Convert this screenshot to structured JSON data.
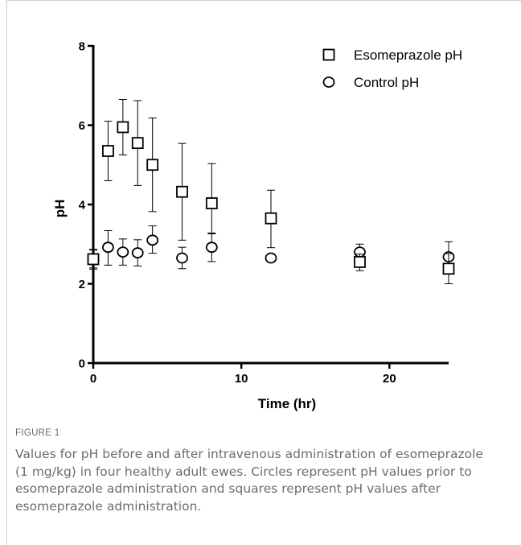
{
  "figure": {
    "label": "FIGURE 1",
    "caption": "Values for pH before and after intravenous administration of esomeprazole (1 mg/kg) in four healthy adult ewes. Circles represent pH values prior to esomeprazole administration and squares represent pH values after esomeprazole administration."
  },
  "chart_data": {
    "type": "scatter",
    "xlabel": "Time (hr)",
    "ylabel": "pH",
    "xlim": [
      0,
      24
    ],
    "ylim": [
      0,
      8
    ],
    "x_ticks": [
      0,
      10,
      20
    ],
    "y_ticks": [
      0,
      2,
      4,
      6,
      8
    ],
    "grid": false,
    "legend_position": "top-right",
    "series": [
      {
        "name": "Esomeprazole pH",
        "marker": "square",
        "points": [
          {
            "x": 0,
            "y": 2.62,
            "err_low": 0.25,
            "err_high": 0.25
          },
          {
            "x": 1,
            "y": 5.35,
            "err_low": 0.75,
            "err_high": 0.75
          },
          {
            "x": 2,
            "y": 5.95,
            "err_low": 0.7,
            "err_high": 0.7
          },
          {
            "x": 3,
            "y": 5.55,
            "err_low": 1.07,
            "err_high": 1.07
          },
          {
            "x": 4,
            "y": 5.0,
            "err_low": 1.18,
            "err_high": 1.18
          },
          {
            "x": 6,
            "y": 4.32,
            "err_low": 1.22,
            "err_high": 1.22
          },
          {
            "x": 8,
            "y": 4.03,
            "err_low": 0.77,
            "err_high": 1.0
          },
          {
            "x": 12,
            "y": 3.65,
            "err_low": 0.74,
            "err_high": 0.71
          },
          {
            "x": 18,
            "y": 2.55,
            "err_low": 0.22,
            "err_high": 0.2
          },
          {
            "x": 24,
            "y": 2.38,
            "err_low": 0.38,
            "err_high": 0.38
          }
        ]
      },
      {
        "name": "Control pH",
        "marker": "circle",
        "points": [
          {
            "x": 0,
            "y": 2.6,
            "err_low": 0.2,
            "err_high": 0.25
          },
          {
            "x": 1,
            "y": 2.92,
            "err_low": 0.45,
            "err_high": 0.42
          },
          {
            "x": 2,
            "y": 2.8,
            "err_low": 0.33,
            "err_high": 0.33
          },
          {
            "x": 3,
            "y": 2.78,
            "err_low": 0.33,
            "err_high": 0.33
          },
          {
            "x": 4,
            "y": 3.1,
            "err_low": 0.33,
            "err_high": 0.36
          },
          {
            "x": 6,
            "y": 2.65,
            "err_low": 0.27,
            "err_high": 0.27
          },
          {
            "x": 8,
            "y": 2.92,
            "err_low": 0.36,
            "err_high": 0.36
          },
          {
            "x": 12,
            "y": 2.65,
            "err_low": 0.1,
            "err_high": 0.1
          },
          {
            "x": 18,
            "y": 2.8,
            "err_low": 0.2,
            "err_high": 0.2
          },
          {
            "x": 24,
            "y": 2.68,
            "err_low": 0.38,
            "err_high": 0.38
          }
        ]
      }
    ]
  }
}
